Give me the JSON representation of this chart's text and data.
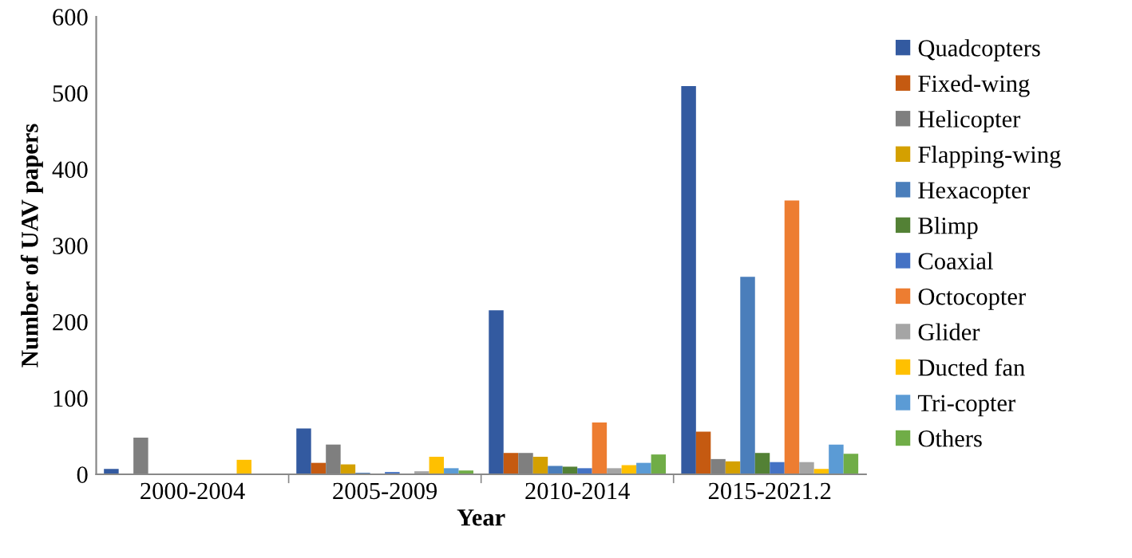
{
  "chart_data": {
    "type": "bar",
    "xlabel": "Year",
    "ylabel": "Number of UAV papers",
    "categories": [
      "2000-2004",
      "2005-2009",
      "2010-2014",
      "2015-2021.2"
    ],
    "series": [
      {
        "name": "Quadcopters",
        "color": "#335aa0",
        "values": [
          7,
          60,
          215,
          509
        ]
      },
      {
        "name": "Fixed-wing",
        "color": "#c55a11",
        "values": [
          0,
          15,
          28,
          56
        ]
      },
      {
        "name": "Helicopter",
        "color": "#7f7f7f",
        "values": [
          48,
          39,
          28,
          20
        ]
      },
      {
        "name": "Flapping-wing",
        "color": "#d4a000",
        "values": [
          0,
          13,
          23,
          17
        ]
      },
      {
        "name": "Hexacopter",
        "color": "#4a7ebb",
        "values": [
          0,
          2,
          11,
          259
        ]
      },
      {
        "name": "Blimp",
        "color": "#538135",
        "values": [
          0,
          0,
          10,
          28
        ]
      },
      {
        "name": "Coaxial",
        "color": "#4472c4",
        "values": [
          0,
          3,
          8,
          16
        ]
      },
      {
        "name": "Octocopter",
        "color": "#ed7d31",
        "values": [
          0,
          0,
          68,
          359
        ]
      },
      {
        "name": "Glider",
        "color": "#a5a5a5",
        "values": [
          0,
          4,
          8,
          16
        ]
      },
      {
        "name": "Ducted fan",
        "color": "#ffc000",
        "values": [
          19,
          23,
          12,
          7
        ]
      },
      {
        "name": "Tri-copter",
        "color": "#5b9bd5",
        "values": [
          0,
          8,
          15,
          39
        ]
      },
      {
        "name": "Others",
        "color": "#70ad47",
        "values": [
          0,
          5,
          26,
          27
        ]
      }
    ],
    "ylim": [
      0,
      600
    ],
    "yticks": [
      0,
      100,
      200,
      300,
      400,
      500,
      600
    ],
    "grid": false,
    "legend": "right"
  }
}
